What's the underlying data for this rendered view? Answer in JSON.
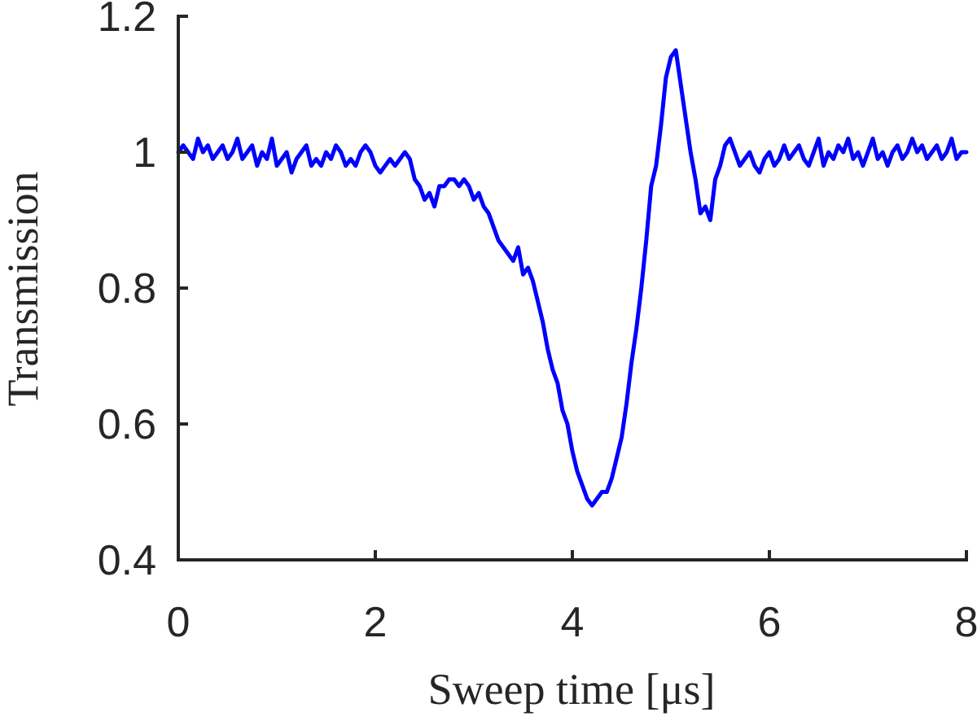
{
  "chart_data": {
    "type": "line",
    "xlabel": "Sweep time [μs]",
    "ylabel": "Transmission",
    "xlim": [
      0,
      8
    ],
    "ylim": [
      0.4,
      1.2
    ],
    "xticks": [
      0,
      2,
      4,
      6,
      8
    ],
    "yticks": [
      0.4,
      0.6,
      0.8,
      1.0,
      1.2
    ],
    "xtick_labels": [
      "0",
      "2",
      "4",
      "6",
      "8"
    ],
    "ytick_labels": [
      "0.4",
      "0.6",
      "0.8",
      "1",
      "1.2"
    ],
    "grid": false,
    "line_color": "#0000ff",
    "axis_color": "#262626",
    "series": [
      {
        "x": [
          0.0,
          0.05,
          0.1,
          0.15,
          0.2,
          0.25,
          0.3,
          0.35,
          0.4,
          0.45,
          0.5,
          0.55,
          0.6,
          0.65,
          0.7,
          0.75,
          0.8,
          0.85,
          0.9,
          0.95,
          1.0,
          1.05,
          1.1,
          1.15,
          1.2,
          1.25,
          1.3,
          1.35,
          1.4,
          1.45,
          1.5,
          1.55,
          1.6,
          1.65,
          1.7,
          1.75,
          1.8,
          1.85,
          1.9,
          1.95,
          2.0,
          2.05,
          2.1,
          2.15,
          2.2,
          2.25,
          2.3,
          2.35,
          2.4,
          2.45,
          2.5,
          2.55,
          2.6,
          2.65,
          2.7,
          2.75,
          2.8,
          2.85,
          2.9,
          2.95,
          3.0,
          3.05,
          3.1,
          3.15,
          3.2,
          3.25,
          3.3,
          3.35,
          3.4,
          3.45,
          3.5,
          3.55,
          3.6,
          3.65,
          3.7,
          3.75,
          3.8,
          3.85,
          3.9,
          3.95,
          4.0,
          4.05,
          4.1,
          4.15,
          4.2,
          4.25,
          4.3,
          4.35,
          4.4,
          4.45,
          4.5,
          4.55,
          4.6,
          4.65,
          4.7,
          4.75,
          4.8,
          4.85,
          4.9,
          4.95,
          5.0,
          5.05,
          5.1,
          5.15,
          5.2,
          5.25,
          5.3,
          5.35,
          5.4,
          5.45,
          5.5,
          5.55,
          5.6,
          5.65,
          5.7,
          5.75,
          5.8,
          5.85,
          5.9,
          5.95,
          6.0,
          6.05,
          6.1,
          6.15,
          6.2,
          6.25,
          6.3,
          6.35,
          6.4,
          6.45,
          6.5,
          6.55,
          6.6,
          6.65,
          6.7,
          6.75,
          6.8,
          6.85,
          6.9,
          6.95,
          7.0,
          7.05,
          7.1,
          7.15,
          7.2,
          7.25,
          7.3,
          7.35,
          7.4,
          7.45,
          7.5,
          7.55,
          7.6,
          7.65,
          7.7,
          7.75,
          7.8,
          7.85,
          7.9,
          7.95,
          8.0
        ],
        "y": [
          1.0,
          1.01,
          1.0,
          0.99,
          1.02,
          1.0,
          1.01,
          0.99,
          1.0,
          1.01,
          0.99,
          1.0,
          1.02,
          0.99,
          1.0,
          1.01,
          0.98,
          1.0,
          0.99,
          1.02,
          0.98,
          0.99,
          1.0,
          0.97,
          0.99,
          1.0,
          1.01,
          0.98,
          0.99,
          0.98,
          1.0,
          0.99,
          1.01,
          1.0,
          0.98,
          0.99,
          0.98,
          1.0,
          1.01,
          1.0,
          0.98,
          0.97,
          0.98,
          0.99,
          0.98,
          0.99,
          1.0,
          0.99,
          0.96,
          0.95,
          0.93,
          0.94,
          0.92,
          0.95,
          0.95,
          0.96,
          0.96,
          0.95,
          0.96,
          0.95,
          0.93,
          0.94,
          0.92,
          0.91,
          0.89,
          0.87,
          0.86,
          0.85,
          0.84,
          0.86,
          0.82,
          0.83,
          0.81,
          0.78,
          0.75,
          0.71,
          0.68,
          0.66,
          0.62,
          0.6,
          0.56,
          0.53,
          0.51,
          0.49,
          0.48,
          0.49,
          0.5,
          0.5,
          0.52,
          0.55,
          0.58,
          0.63,
          0.69,
          0.74,
          0.8,
          0.87,
          0.95,
          0.98,
          1.04,
          1.11,
          1.14,
          1.15,
          1.1,
          1.05,
          1.0,
          0.96,
          0.91,
          0.92,
          0.9,
          0.96,
          0.98,
          1.01,
          1.02,
          1.0,
          0.98,
          0.99,
          1.0,
          0.98,
          0.97,
          0.99,
          1.0,
          0.98,
          0.99,
          1.01,
          0.99,
          1.0,
          1.01,
          0.99,
          0.98,
          1.0,
          1.02,
          0.98,
          1.0,
          0.99,
          1.01,
          1.0,
          1.02,
          0.99,
          1.0,
          0.98,
          1.0,
          1.02,
          0.99,
          1.0,
          0.98,
          1.0,
          1.01,
          0.99,
          1.0,
          1.02,
          1.0,
          1.01,
          0.99,
          1.0,
          1.01,
          0.99,
          1.0,
          1.02,
          0.99,
          1.0,
          1.0
        ]
      }
    ]
  }
}
